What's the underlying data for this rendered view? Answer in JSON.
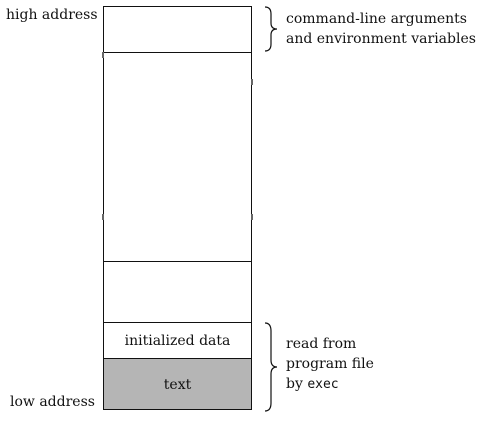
{
  "labels": {
    "high_address": "high address",
    "low_address": "low address"
  },
  "segments": {
    "initialized_data": "initialized data",
    "text": "text"
  },
  "annotations": {
    "args_line1": "command-line arguments",
    "args_line2": "and environment variables",
    "exec_line1": "read from",
    "exec_line2": "program file",
    "exec_line3_prefix": "by ",
    "exec_line3_code": "exec"
  },
  "colors": {
    "text_segment_fill": "#b5b5b5"
  }
}
